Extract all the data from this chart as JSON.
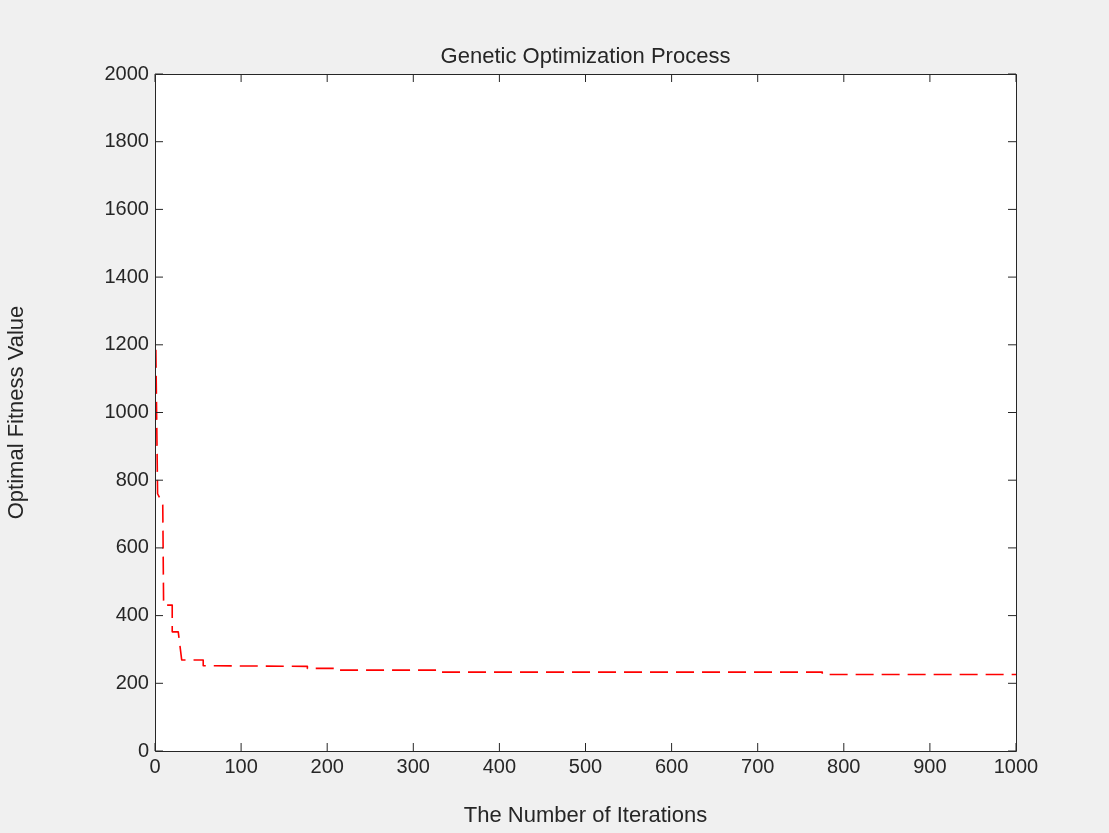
{
  "chart_data": {
    "type": "line",
    "title": "Genetic Optimization Process",
    "xlabel": "The Number of Iterations",
    "ylabel": "Optimal Fitness Value",
    "x": [
      1,
      3,
      9,
      10,
      20,
      20,
      27,
      31,
      56,
      56,
      177,
      177,
      212,
      212,
      331,
      331,
      775,
      775,
      1000
    ],
    "series": [
      {
        "color": "#ff0000",
        "values": [
          1185,
          760,
          730,
          431,
          431,
          352,
          352,
          269,
          269,
          252,
          250,
          244,
          244,
          239,
          239,
          233,
          233,
          226,
          226
        ]
      }
    ],
    "xlim": [
      0,
      1000
    ],
    "xticks": [
      0,
      100,
      200,
      300,
      400,
      500,
      600,
      700,
      800,
      900,
      1000
    ],
    "ylim": [
      0,
      2000
    ],
    "yticks": [
      0,
      200,
      400,
      600,
      800,
      1000,
      1200,
      1400,
      1600,
      1800,
      2000
    ],
    "grid": false,
    "legend": false,
    "marker": "none",
    "line_style": "dashed"
  }
}
